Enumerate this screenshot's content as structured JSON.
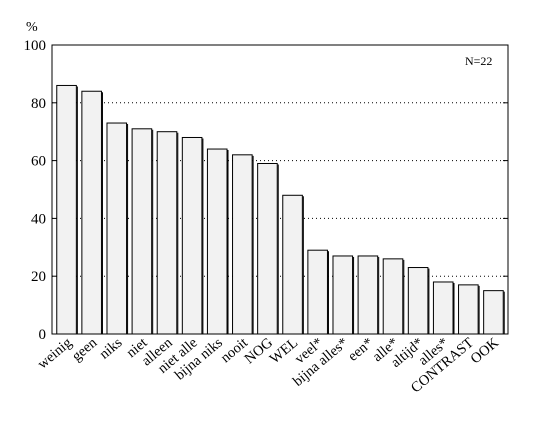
{
  "chart_data": {
    "type": "bar",
    "unit_label": "%",
    "annotation": "N=22",
    "categories": [
      "weinig",
      "geen",
      "niks",
      "niet",
      "alleen",
      "niet alle",
      "bijna niks",
      "nooit",
      "NOG",
      "WEL",
      "veel*",
      "bijna alles*",
      "een*",
      "alle*",
      "altijd*",
      "alles*",
      "CONTRAST",
      "OOK"
    ],
    "values": [
      86,
      84,
      73,
      71,
      70,
      68,
      64,
      62,
      59,
      48,
      29,
      27,
      27,
      26,
      23,
      18,
      17,
      15
    ],
    "yticks": [
      0,
      20,
      40,
      60,
      80,
      100
    ],
    "ylim": [
      0,
      100
    ],
    "grid": "horizontal dotted",
    "bar_fill": "#f2f2f2",
    "bar_stroke": "#000000"
  }
}
